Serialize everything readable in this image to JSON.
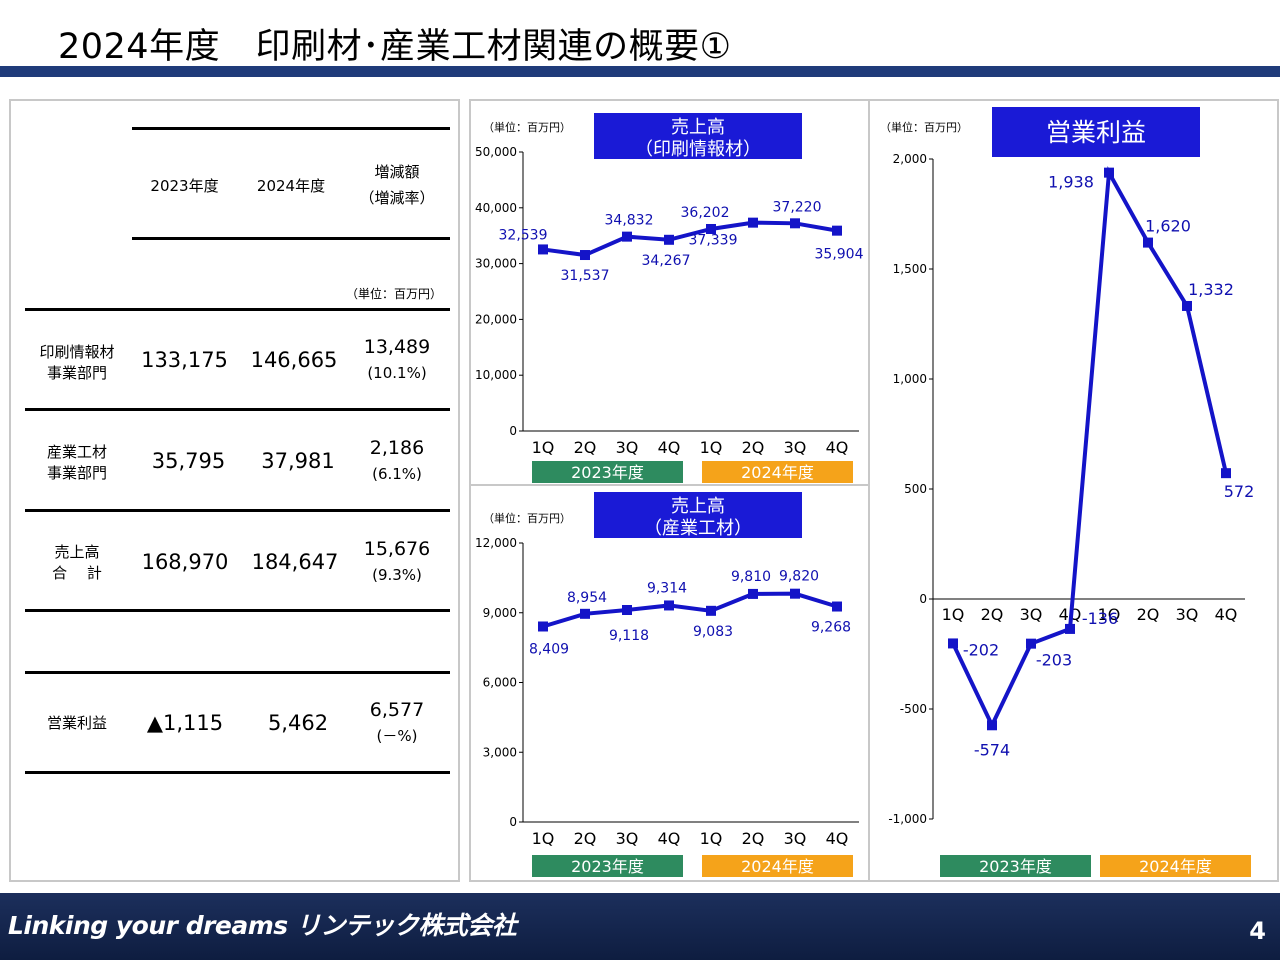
{
  "title": "2024年度　印刷材･産業工材関連の概要①",
  "colors": {
    "title_bar": "#1f3b7a",
    "line": "#1414c8",
    "fy2023": "#2e8b5f",
    "fy2024": "#f5a31a",
    "chart_title_bg": "#1a1ad6"
  },
  "table": {
    "col_headers": [
      "2023年度",
      "2024年度",
      "増減額",
      "（増減率）"
    ],
    "unit": "（単位：百万円）",
    "rows": [
      {
        "label": [
          "印刷情報材",
          "事業部門"
        ],
        "fy2023": "133,175",
        "fy2024": "146,665",
        "diff": "13,489",
        "rate": "(10.1%)"
      },
      {
        "label": [
          "産業工材",
          "事業部門"
        ],
        "fy2023": "35,795",
        "fy2024": "37,981",
        "diff": "2,186",
        "rate": "(6.1%)"
      },
      {
        "label": [
          "売上高",
          "合　 計"
        ],
        "fy2023": "168,970",
        "fy2024": "184,647",
        "diff": "15,676",
        "rate": "(9.3%)"
      },
      {
        "label": [
          "営業利益"
        ],
        "fy2023": "▲1,115",
        "fy2024": "5,462",
        "diff": "6,577",
        "rate": "(－%)"
      }
    ]
  },
  "chart_data": [
    {
      "type": "line",
      "title": "売上高\n（印刷情報材）",
      "unit": "（単位：百万円）",
      "categories": [
        "1Q",
        "2Q",
        "3Q",
        "4Q",
        "1Q",
        "2Q",
        "3Q",
        "4Q"
      ],
      "groups": [
        "2023年度",
        "2024年度"
      ],
      "values": [
        32539,
        31537,
        34832,
        34267,
        36202,
        37339,
        37220,
        35904
      ],
      "labels": [
        "32,539",
        "31,537",
        "34,832",
        "34,267",
        "36,202",
        "37,339",
        "37,220",
        "35,904"
      ],
      "yticks": [
        "0",
        "10,000",
        "20,000",
        "30,000",
        "40,000",
        "50,000"
      ],
      "ylim": [
        0,
        50000
      ]
    },
    {
      "type": "line",
      "title": "売上高\n（産業工材）",
      "unit": "（単位：百万円）",
      "categories": [
        "1Q",
        "2Q",
        "3Q",
        "4Q",
        "1Q",
        "2Q",
        "3Q",
        "4Q"
      ],
      "groups": [
        "2023年度",
        "2024年度"
      ],
      "values": [
        8409,
        8954,
        9118,
        9314,
        9083,
        9810,
        9820,
        9268
      ],
      "labels": [
        "8,409",
        "8,954",
        "9,118",
        "9,314",
        "9,083",
        "9,810",
        "9,820",
        "9,268"
      ],
      "yticks": [
        "0",
        "3,000",
        "6,000",
        "9,000",
        "12,000"
      ],
      "ylim": [
        0,
        12000
      ]
    },
    {
      "type": "line",
      "title": "営業利益",
      "unit": "（単位：百万円）",
      "categories": [
        "1Q",
        "2Q",
        "3Q",
        "4Q",
        "1Q",
        "2Q",
        "3Q",
        "4Q"
      ],
      "groups": [
        "2023年度",
        "2024年度"
      ],
      "values": [
        -202,
        -574,
        -203,
        -136,
        1938,
        1620,
        1332,
        572
      ],
      "labels": [
        "-202",
        "-574",
        "-203",
        "-136",
        "1,938",
        "1,620",
        "1,332",
        "572"
      ],
      "yticks": [
        "-1,000",
        "-500",
        "0",
        "500",
        "1,000",
        "1,500",
        "2,000"
      ],
      "ylim": [
        -1000,
        2000
      ]
    }
  ],
  "footer": {
    "logo": "Linking your dreams リンテック株式会社",
    "page": "4"
  }
}
